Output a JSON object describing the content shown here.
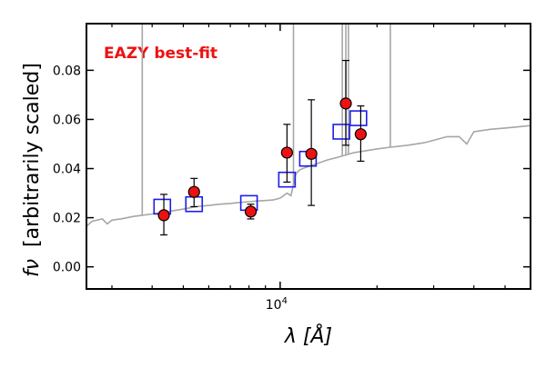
{
  "chart_data": {
    "type": "scatter",
    "xscale": "log",
    "xlim": [
      2500,
      60000
    ],
    "ylim": [
      -0.009,
      0.099
    ],
    "xlabel": "λ [Å]",
    "ylabel": "f_ν [arbitrarily scaled]",
    "ylabel_symbol": "fν",
    "ylabel_text": "[arbitrarily scaled]",
    "annotation": "EAZY best-fit",
    "annotation_color": "#ee1111",
    "x_ticks": [
      {
        "value": 10000,
        "label": "10",
        "exponent": "4"
      }
    ],
    "y_ticks": [
      {
        "value": 0.0,
        "label": "0.00"
      },
      {
        "value": 0.02,
        "label": "0.02"
      },
      {
        "value": 0.04,
        "label": "0.04"
      },
      {
        "value": 0.06,
        "label": "0.06"
      },
      {
        "value": 0.08,
        "label": "0.08"
      }
    ],
    "grid": false,
    "series": [
      {
        "role": "observed_flux",
        "marker": "circle",
        "color": "#ee1111",
        "points": [
          {
            "x": 4350,
            "y": 0.021,
            "yerr_low": 0.008,
            "yerr_high": 0.0085
          },
          {
            "x": 5400,
            "y": 0.0305,
            "yerr_low": 0.006,
            "yerr_high": 0.0055
          },
          {
            "x": 8100,
            "y": 0.0225,
            "yerr_low": 0.003,
            "yerr_high": 0.003
          },
          {
            "x": 10500,
            "y": 0.0465,
            "yerr_low": 0.012,
            "yerr_high": 0.0115
          },
          {
            "x": 12500,
            "y": 0.046,
            "yerr_low": 0.021,
            "yerr_high": 0.022
          },
          {
            "x": 16000,
            "y": 0.0665,
            "yerr_low": 0.017,
            "yerr_high": 0.0175
          },
          {
            "x": 17800,
            "y": 0.054,
            "yerr_low": 0.011,
            "yerr_high": 0.0115
          }
        ]
      },
      {
        "role": "model_photometry",
        "marker": "square",
        "color": "#1c1cee",
        "points": [
          {
            "x": 4300,
            "y": 0.0245
          },
          {
            "x": 5400,
            "y": 0.0255
          },
          {
            "x": 8000,
            "y": 0.026
          },
          {
            "x": 10500,
            "y": 0.0355
          },
          {
            "x": 12200,
            "y": 0.044
          },
          {
            "x": 15500,
            "y": 0.055
          },
          {
            "x": 17500,
            "y": 0.0605
          }
        ]
      },
      {
        "role": "best_fit_sed",
        "type": "line",
        "color": "#a6a6a6",
        "points": [
          [
            2500,
            0.0165
          ],
          [
            2600,
            0.0185
          ],
          [
            2800,
            0.0195
          ],
          [
            2900,
            0.0175
          ],
          [
            3000,
            0.019
          ],
          [
            3200,
            0.0195
          ],
          [
            3500,
            0.0205
          ],
          [
            4000,
            0.0215
          ],
          [
            4500,
            0.0225
          ],
          [
            5000,
            0.0235
          ],
          [
            5500,
            0.0245
          ],
          [
            6000,
            0.025
          ],
          [
            6500,
            0.0255
          ],
          [
            7000,
            0.0258
          ],
          [
            7500,
            0.0262
          ],
          [
            8000,
            0.0265
          ],
          [
            8500,
            0.0268
          ],
          [
            9000,
            0.027
          ],
          [
            9500,
            0.0272
          ],
          [
            10000,
            0.028
          ],
          [
            10500,
            0.03
          ],
          [
            10800,
            0.029
          ],
          [
            11200,
            0.038
          ],
          [
            11500,
            0.0395
          ],
          [
            12000,
            0.0405
          ],
          [
            13000,
            0.042
          ],
          [
            14000,
            0.0435
          ],
          [
            15000,
            0.0445
          ],
          [
            16000,
            0.0455
          ],
          [
            17000,
            0.0465
          ],
          [
            18000,
            0.047
          ],
          [
            20000,
            0.048
          ],
          [
            22000,
            0.0487
          ],
          [
            25000,
            0.0495
          ],
          [
            28000,
            0.0505
          ],
          [
            30000,
            0.0515
          ],
          [
            33000,
            0.053
          ],
          [
            36000,
            0.053
          ],
          [
            38000,
            0.05
          ],
          [
            40000,
            0.055
          ],
          [
            45000,
            0.056
          ],
          [
            50000,
            0.0565
          ],
          [
            55000,
            0.057
          ],
          [
            60000,
            0.0575
          ]
        ],
        "emission_lines": [
          {
            "x": 3727,
            "peak": 0.099
          },
          {
            "x": 11000,
            "peak": 0.099
          },
          {
            "x": 15600,
            "peak": 0.099
          },
          {
            "x": 16000,
            "peak": 0.099
          },
          {
            "x": 16300,
            "peak": 0.099
          },
          {
            "x": 22000,
            "peak": 0.099
          }
        ]
      }
    ]
  }
}
